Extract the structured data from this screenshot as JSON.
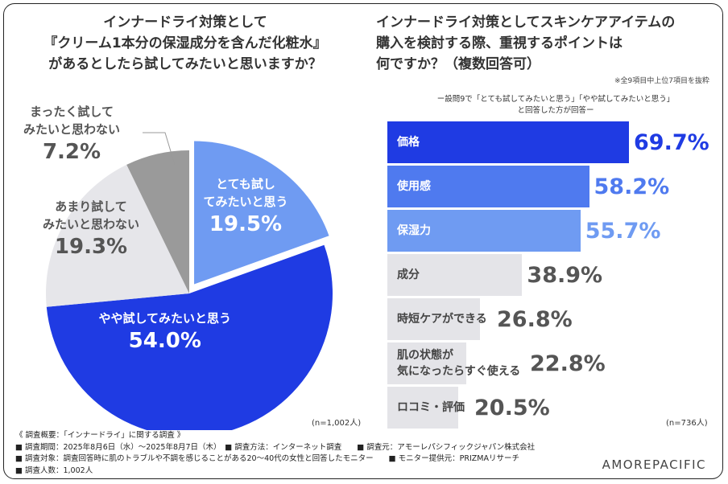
{
  "left_title": [
    "インナードライ対策として",
    "『クリーム1本分の保湿成分を含んだ化粧水』",
    "があるとしたら試してみたいと思いますか？"
  ],
  "right_title": [
    "インナードライ対策としてスキンケアアイテムの",
    "購入を検討する際、重視するポイントは",
    "何ですか？（複数回答可）"
  ],
  "right_note": "※全9項目中上位7項目を抜粋",
  "bar_subtitle": [
    "ー設問9で「とても試してみたいと思う」「やや試してみたいと思う」",
    "と回答した方が回答ー"
  ],
  "n_left": "(n=1,002人)",
  "n_right": "(n=736人)",
  "brand": "AMOREPACIFIC",
  "footer": [
    "《 調査概要：「インナードライ」に関する調査 》",
    "■ 調査期間：2025年8月6日（水）〜2025年8月7日（木）　■ 調査方法：インターネット調査　　■ 調査元：アモーレパシフィックジャパン株式会社",
    "■ 調査対象：調査回答時に肌のトラブルや不調を感じることがある20〜40代の女性と回答したモニター　　■ モニター提供元：PRIZMAリサーチ",
    "■ 調査人数：1,002人"
  ],
  "chart_data": [
    {
      "type": "pie",
      "slices": [
        {
          "label": "とても試してみたいと思う",
          "lines": [
            "とても試し",
            "てみたいと思う"
          ],
          "value": 19.5,
          "display": "19.5%",
          "color": "#6f9bf2",
          "text_color": "#ffffff"
        },
        {
          "label": "やや試してみたいと思う",
          "lines": [
            "やや試してみたいと思う"
          ],
          "value": 54.0,
          "display": "54.0%",
          "color": "#1f3be3",
          "text_color": "#ffffff"
        },
        {
          "label": "あまり試してみたいと思わない",
          "lines": [
            "あまり試して",
            "みたいと思わない"
          ],
          "value": 19.3,
          "display": "19.3%",
          "color": "#e6e6ea",
          "text_color": "#555555"
        },
        {
          "label": "まったく試してみたいと思わない",
          "lines": [
            "まったく試して",
            "みたいと思わない"
          ],
          "value": 7.2,
          "display": "7.2%",
          "color": "#9a9a9a",
          "text_color": "#555555"
        }
      ]
    },
    {
      "type": "bar",
      "orientation": "horizontal",
      "categories": [
        "価格",
        "使用感",
        "保湿力",
        "成分",
        "時短ケアができる",
        "肌の状態が気になったらすぐ使える",
        "ロコミ・評価"
      ],
      "label_lines": [
        [
          "価格"
        ],
        [
          "使用感"
        ],
        [
          "保湿力"
        ],
        [
          "成分"
        ],
        [
          "時短ケアができる"
        ],
        [
          "肌の状態が",
          "気になったらすぐ使える"
        ],
        [
          "ロコミ・評価"
        ]
      ],
      "values": [
        69.7,
        58.2,
        55.7,
        38.9,
        26.8,
        22.8,
        20.5
      ],
      "display": [
        "69.7%",
        "58.2%",
        "55.7%",
        "38.9%",
        "26.8%",
        "22.8%",
        "20.5%"
      ],
      "colors": [
        "#1f3be3",
        "#4f7aef",
        "#6f9bf2",
        "#e4e4e8",
        "#e4e4e8",
        "#e4e4e8",
        "#e4e4e8"
      ],
      "label_colors": [
        "#ffffff",
        "#ffffff",
        "#ffffff",
        "#444444",
        "#444444",
        "#444444",
        "#444444"
      ],
      "value_colors": [
        "#1f3be3",
        "#4f7aef",
        "#6f9bf2",
        "#555555",
        "#555555",
        "#555555",
        "#555555"
      ]
    }
  ]
}
